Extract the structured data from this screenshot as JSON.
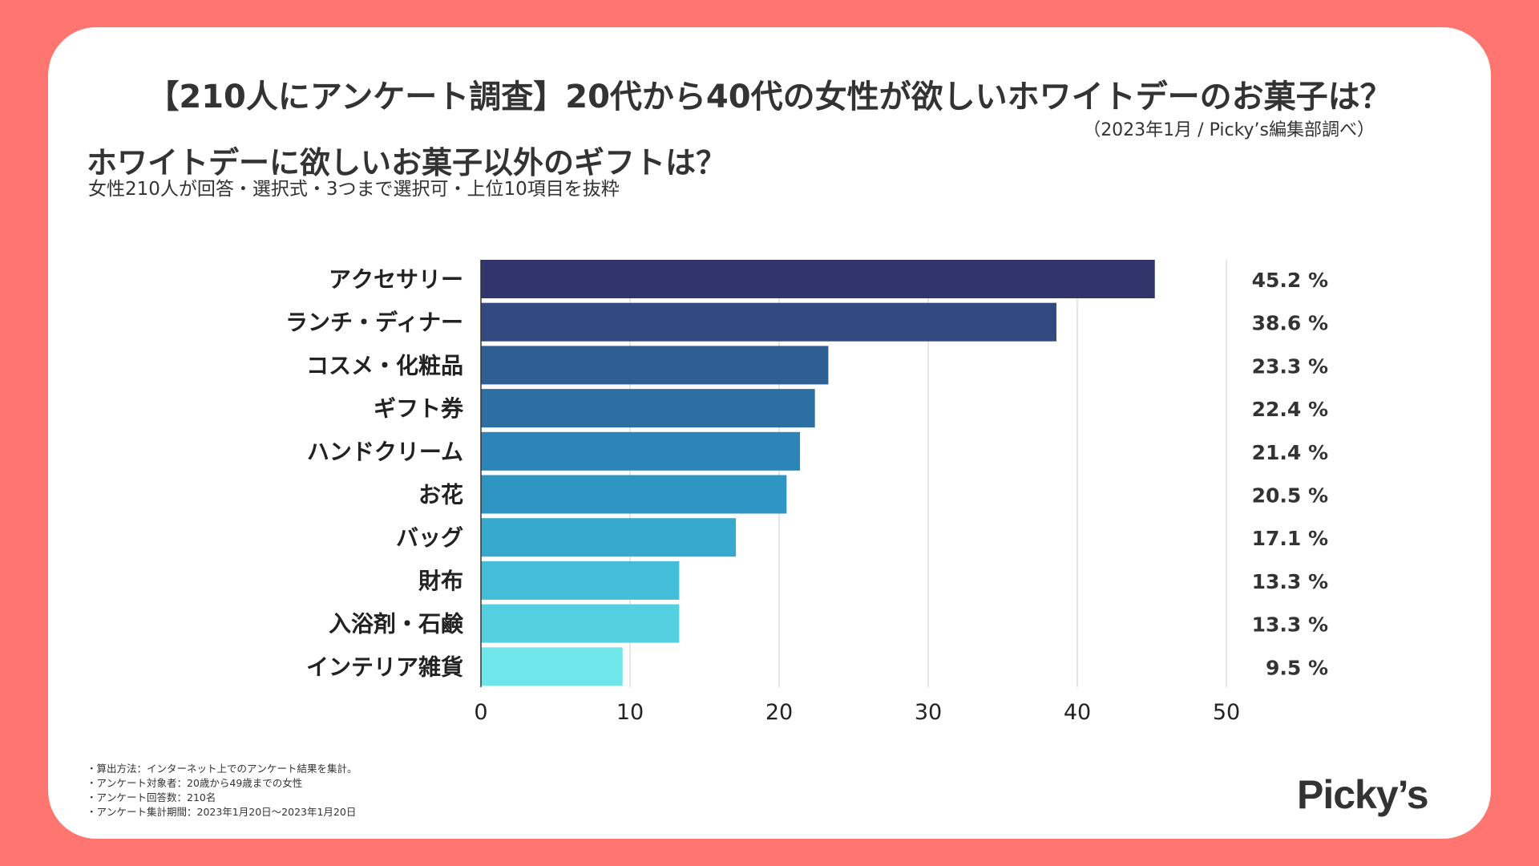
{
  "header": {
    "title": "【210人にアンケート調査】20代から40代の女性が欲しいホワイトデーのお菓子は？",
    "source": "（2023年1月 / Picky’s編集部調べ）"
  },
  "subheader": {
    "title": "ホワイトデーに欲しいお菓子以外のギフトは？",
    "note": "女性210人が回答・選択式・3つまで選択可・上位10項目を抜粋"
  },
  "chart_data": {
    "type": "bar",
    "orientation": "horizontal",
    "categories": [
      "アクセサリー",
      "ランチ・ディナー",
      "コスメ・化粧品",
      "ギフト券",
      "ハンドクリーム",
      "お花",
      "バッグ",
      "財布",
      "入浴剤・石鹸",
      "インテリア雑貨"
    ],
    "values": [
      45.2,
      38.6,
      23.3,
      22.4,
      21.4,
      20.5,
      17.1,
      13.3,
      13.3,
      9.5
    ],
    "value_labels": [
      "45.2 %",
      "38.6 %",
      "23.3 %",
      "22.4 %",
      "21.4 %",
      "20.5 %",
      "17.1 %",
      "13.3 %",
      "13.3 %",
      "9.5 %"
    ],
    "colors": [
      "#31356b",
      "#334a80",
      "#2f5f92",
      "#2d6fa3",
      "#2d84b8",
      "#2f96c4",
      "#37a9cd",
      "#44bed8",
      "#55d0e0",
      "#6ee6ea"
    ],
    "xlim": [
      0,
      50
    ],
    "xticks": [
      0,
      10,
      20,
      30,
      40,
      50
    ],
    "grid": true,
    "xlabel": "",
    "ylabel": ""
  },
  "footnotes": [
    "・算出方法：インターネット上でのアンケート結果を集計。",
    "・アンケート対象者：20歳から49歳までの女性",
    "・アンケート回答数：210名",
    "・アンケート集計期間：2023年1月20日〜2023年1月20日"
  ],
  "logo": {
    "text": "Picky’s"
  },
  "theme": {
    "background": "#ff7670",
    "card": "#ffffff",
    "text": "#333333",
    "grid": "#dddddd"
  }
}
